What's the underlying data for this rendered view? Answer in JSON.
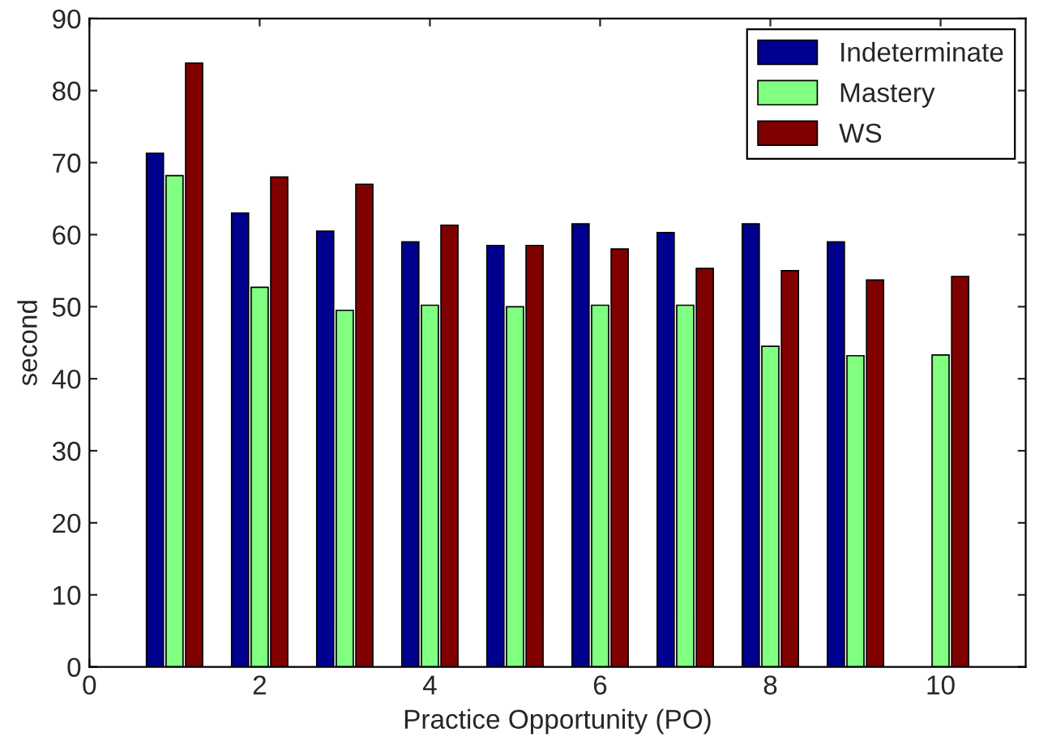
{
  "chart_data": {
    "type": "bar",
    "xlabel": "Practice Opportunity (PO)",
    "ylabel": "second",
    "x": [
      1,
      2,
      3,
      4,
      5,
      6,
      7,
      8,
      9,
      10
    ],
    "series": [
      {
        "name": "Indeterminate",
        "color": "#00008f",
        "values": [
          71.3,
          63,
          60.5,
          59,
          58.5,
          61.5,
          60.3,
          61.5,
          59,
          null
        ]
      },
      {
        "name": "Mastery",
        "color": "#80ff80",
        "values": [
          68.2,
          52.7,
          49.5,
          50.2,
          50,
          50.2,
          50.2,
          44.5,
          43.2,
          43.3
        ]
      },
      {
        "name": "WS",
        "color": "#800000",
        "values": [
          83.8,
          68,
          67,
          61.3,
          58.5,
          58,
          55.3,
          55,
          53.7,
          54.2
        ]
      }
    ],
    "xlim": [
      0,
      11
    ],
    "xticks": [
      0,
      2,
      4,
      6,
      8,
      10
    ],
    "ylim": [
      0,
      90
    ],
    "yticks": [
      0,
      10,
      20,
      30,
      40,
      50,
      60,
      70,
      80,
      90
    ],
    "legend": "top right",
    "grid": false
  }
}
